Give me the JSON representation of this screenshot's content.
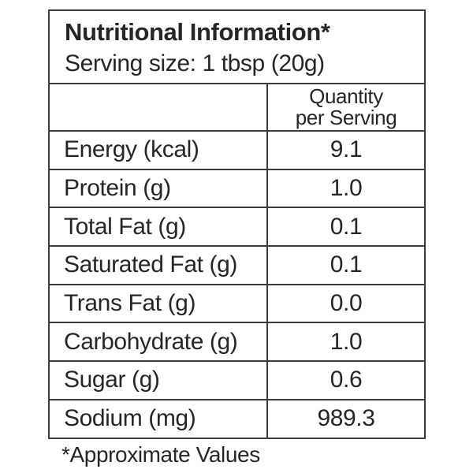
{
  "label": {
    "title": "Nutritional Information*",
    "serving_size": "Serving size: 1 tbsp (20g)",
    "column_header_line1": "Quantity",
    "column_header_line2": "per Serving",
    "rows": [
      {
        "name": "Energy (kcal)",
        "value": "9.1"
      },
      {
        "name": "Protein (g)",
        "value": "1.0"
      },
      {
        "name": "Total Fat (g)",
        "value": "0.1"
      },
      {
        "name": "Saturated Fat (g)",
        "value": "0.1"
      },
      {
        "name": "Trans Fat (g)",
        "value": "0.0"
      },
      {
        "name": "Carbohydrate (g)",
        "value": "1.0"
      },
      {
        "name": "Sugar (g)",
        "value": "0.6"
      },
      {
        "name": "Sodium (mg)",
        "value": "989.3"
      }
    ],
    "footnote": "*Approximate Values",
    "colors": {
      "background": "#ffffff",
      "border": "#3c3c3c",
      "text": "#262626"
    }
  }
}
